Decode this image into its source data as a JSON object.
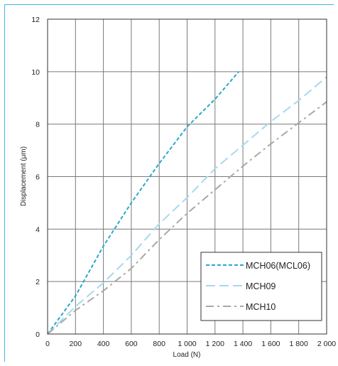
{
  "chart_data": {
    "type": "line",
    "title": "",
    "xlabel": "Load (N)",
    "ylabel": "Displacement (μm)",
    "xlim": [
      0,
      2000
    ],
    "ylim": [
      0,
      12
    ],
    "x_ticks": [
      0,
      200,
      400,
      600,
      800,
      1000,
      1200,
      1400,
      1600,
      1800,
      2000
    ],
    "x_tick_labels": [
      "0",
      "200",
      "400",
      "600",
      "800",
      "1 000",
      "1 200",
      "1 400",
      "1 600",
      "1 800",
      "2 000"
    ],
    "y_ticks": [
      0,
      2,
      4,
      6,
      8,
      10,
      12
    ],
    "y_tick_labels": [
      "0",
      "2",
      "4",
      "6",
      "8",
      "10",
      "12"
    ],
    "grid": true,
    "legend_position": "bottom-right",
    "series": [
      {
        "name": "MCH06(MCL06)",
        "color": "#27a9c9",
        "dash": "short",
        "points": [
          [
            0,
            0
          ],
          [
            200,
            1.45
          ],
          [
            400,
            3.35
          ],
          [
            600,
            5.0
          ],
          [
            800,
            6.5
          ],
          [
            1000,
            7.9
          ],
          [
            1200,
            8.95
          ],
          [
            1370,
            10.0
          ]
        ]
      },
      {
        "name": "MCH09",
        "color": "#a6d9ef",
        "dash": "long",
        "points": [
          [
            0,
            0
          ],
          [
            200,
            1.05
          ],
          [
            400,
            1.95
          ],
          [
            600,
            3.0
          ],
          [
            800,
            4.2
          ],
          [
            1000,
            5.2
          ],
          [
            1200,
            6.3
          ],
          [
            1400,
            7.2
          ],
          [
            1600,
            8.1
          ],
          [
            1800,
            8.9
          ],
          [
            2000,
            9.8
          ]
        ]
      },
      {
        "name": "MCH10",
        "color": "#a8a8a8",
        "dash": "dashdot",
        "points": [
          [
            0,
            0
          ],
          [
            200,
            0.9
          ],
          [
            400,
            1.65
          ],
          [
            600,
            2.5
          ],
          [
            800,
            3.6
          ],
          [
            1000,
            4.6
          ],
          [
            1200,
            5.5
          ],
          [
            1400,
            6.4
          ],
          [
            1600,
            7.25
          ],
          [
            1800,
            8.05
          ],
          [
            2000,
            8.85
          ]
        ]
      }
    ]
  }
}
